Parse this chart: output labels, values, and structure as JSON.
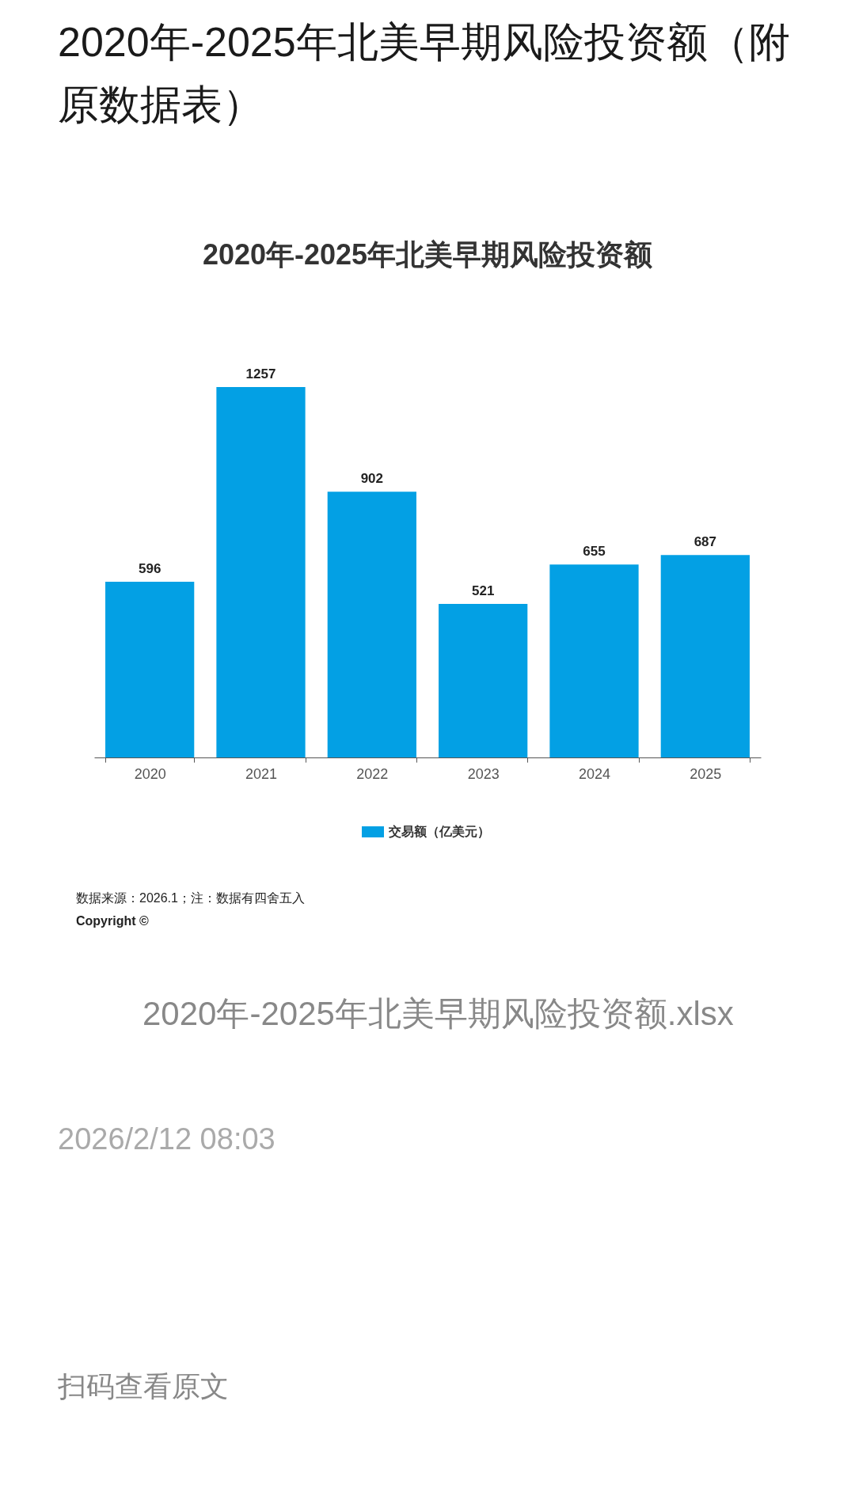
{
  "chart_data": {
    "type": "bar",
    "title": "2020年-2025年北美早期风险投资额（附原数据表）",
    "subtitle": "2020年-2025年北美早期风险投资额",
    "categories": [
      "2020",
      "2021",
      "2022",
      "2023",
      "2024",
      "2025"
    ],
    "series": [
      {
        "name": "交易额（亿美元）",
        "color": "#03a0e4",
        "values": [
          596,
          1257,
          902,
          521,
          655,
          687
        ]
      }
    ],
    "data_labels": true,
    "legend": "bottom",
    "annotations": [
      "数据来源：2026.1；注：数据有四舍五入",
      "Copyright ©",
      "2020年-2025年北美早期风险投资额.xlsx",
      "2026/2/12 08:03",
      "扫码查看原文"
    ]
  }
}
